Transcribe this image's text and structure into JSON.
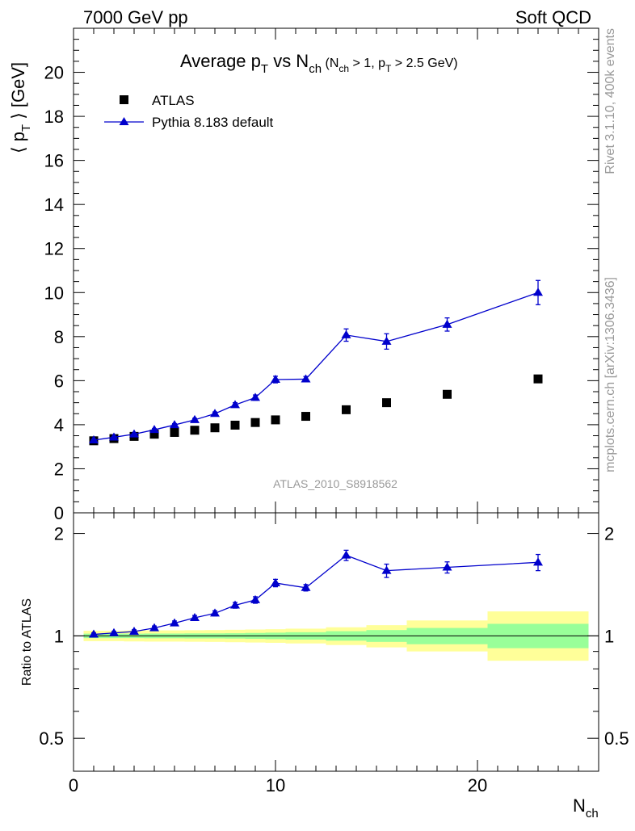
{
  "header": {
    "left": "7000 GeV pp",
    "right": "Soft QCD"
  },
  "side_labels": {
    "rivet": "Rivet 3.1.10,  400k events",
    "mcplots": "mcplots.cern.ch [arXiv:1306.3436]"
  },
  "chart_data": [
    {
      "type": "scatter",
      "panel": "main",
      "title_parts": {
        "t1": "Average p",
        "t1_sub": "T",
        "t2": " vs N",
        "t2_sub": "ch",
        "t3": " (N",
        "t3_sub": "ch",
        "t4": " > 1, p",
        "t4_sub": "T",
        "t5": " > 2.5 GeV)"
      },
      "ylabel_parts": {
        "open": "⟨ p",
        "sub": "T",
        "close": " ⟩  [GeV]"
      },
      "xlabel_parts": {
        "main": "N",
        "sub": "ch"
      },
      "xlim": [
        0,
        26
      ],
      "ylim": [
        0,
        22
      ],
      "xticks": [
        0,
        10,
        20
      ],
      "yticks": [
        0,
        2,
        4,
        6,
        8,
        10,
        12,
        14,
        16,
        18,
        20
      ],
      "legend_position": "top-left",
      "reference_label": "ATLAS_2010_S8918562",
      "series": [
        {
          "name": "ATLAS",
          "style": "square-marker",
          "color": "#000000",
          "x": [
            1,
            2,
            3,
            4,
            5,
            6,
            7,
            8,
            9,
            10,
            11.5,
            13.5,
            15.5,
            18.5,
            23
          ],
          "y": [
            3.27,
            3.37,
            3.47,
            3.57,
            3.65,
            3.75,
            3.86,
            3.98,
            4.1,
            4.22,
            4.38,
            4.68,
            5.0,
            5.38,
            6.08
          ],
          "yerr": [
            0,
            0,
            0,
            0,
            0,
            0,
            0,
            0,
            0,
            0,
            0,
            0,
            0,
            0,
            0
          ]
        },
        {
          "name": "Pythia 8.183 default",
          "style": "triangle-line",
          "color": "#0000cc",
          "x": [
            1,
            2,
            3,
            4,
            5,
            6,
            7,
            8,
            9,
            10,
            11.5,
            13.5,
            15.5,
            18.5,
            23
          ],
          "y": [
            3.3,
            3.43,
            3.57,
            3.77,
            3.99,
            4.22,
            4.5,
            4.9,
            5.23,
            6.05,
            6.07,
            8.07,
            7.78,
            8.55,
            10.0
          ],
          "yerr": [
            0.03,
            0.04,
            0.04,
            0.05,
            0.06,
            0.07,
            0.08,
            0.1,
            0.12,
            0.15,
            0.12,
            0.28,
            0.35,
            0.3,
            0.55
          ]
        }
      ]
    },
    {
      "type": "scatter",
      "panel": "ratio",
      "ylabel": "Ratio to ATLAS",
      "xlim": [
        0,
        26
      ],
      "ylim": [
        0.4,
        2.3
      ],
      "ylog": true,
      "yticks": [
        0.5,
        1,
        2
      ],
      "ytick_labels": [
        "0.5",
        "1",
        "2"
      ],
      "reference_line": 1,
      "bands": [
        {
          "x0": 0.5,
          "x1": 1.5,
          "inner": [
            0.985,
            1.015
          ],
          "outer": [
            0.965,
            1.035
          ]
        },
        {
          "x0": 1.5,
          "x1": 2.5,
          "inner": [
            0.985,
            1.015
          ],
          "outer": [
            0.965,
            1.035
          ]
        },
        {
          "x0": 2.5,
          "x1": 3.5,
          "inner": [
            0.985,
            1.015
          ],
          "outer": [
            0.963,
            1.037
          ]
        },
        {
          "x0": 3.5,
          "x1": 4.5,
          "inner": [
            0.984,
            1.016
          ],
          "outer": [
            0.962,
            1.038
          ]
        },
        {
          "x0": 4.5,
          "x1": 5.5,
          "inner": [
            0.984,
            1.016
          ],
          "outer": [
            0.962,
            1.038
          ]
        },
        {
          "x0": 5.5,
          "x1": 6.5,
          "inner": [
            0.983,
            1.017
          ],
          "outer": [
            0.961,
            1.039
          ]
        },
        {
          "x0": 6.5,
          "x1": 7.5,
          "inner": [
            0.983,
            1.017
          ],
          "outer": [
            0.96,
            1.04
          ]
        },
        {
          "x0": 7.5,
          "x1": 8.5,
          "inner": [
            0.982,
            1.018
          ],
          "outer": [
            0.958,
            1.042
          ]
        },
        {
          "x0": 8.5,
          "x1": 9.5,
          "inner": [
            0.98,
            1.02
          ],
          "outer": [
            0.956,
            1.044
          ]
        },
        {
          "x0": 9.5,
          "x1": 10.5,
          "inner": [
            0.978,
            1.022
          ],
          "outer": [
            0.954,
            1.046
          ]
        },
        {
          "x0": 10.5,
          "x1": 12.5,
          "inner": [
            0.975,
            1.025
          ],
          "outer": [
            0.95,
            1.05
          ]
        },
        {
          "x0": 12.5,
          "x1": 14.5,
          "inner": [
            0.968,
            1.032
          ],
          "outer": [
            0.94,
            1.06
          ]
        },
        {
          "x0": 14.5,
          "x1": 16.5,
          "inner": [
            0.96,
            1.04
          ],
          "outer": [
            0.925,
            1.075
          ]
        },
        {
          "x0": 16.5,
          "x1": 20.5,
          "inner": [
            0.945,
            1.055
          ],
          "outer": [
            0.9,
            1.11
          ]
        },
        {
          "x0": 20.5,
          "x1": 25.5,
          "inner": [
            0.92,
            1.085
          ],
          "outer": [
            0.845,
            1.18
          ]
        }
      ],
      "series": [
        {
          "name": "Pythia 8.183 default / ATLAS",
          "style": "triangle-line",
          "color": "#0000cc",
          "x": [
            1,
            2,
            3,
            4,
            5,
            6,
            7,
            8,
            9,
            10,
            11.5,
            13.5,
            15.5,
            18.5,
            23
          ],
          "y": [
            1.01,
            1.02,
            1.03,
            1.055,
            1.09,
            1.13,
            1.165,
            1.23,
            1.275,
            1.43,
            1.385,
            1.725,
            1.555,
            1.59,
            1.645
          ],
          "yerr": [
            0.01,
            0.01,
            0.012,
            0.014,
            0.016,
            0.018,
            0.02,
            0.024,
            0.028,
            0.036,
            0.03,
            0.06,
            0.07,
            0.06,
            0.09
          ]
        }
      ]
    }
  ],
  "colors": {
    "data": "#000000",
    "mc": "#0000cc",
    "band_inner": "#99ff99",
    "band_outer": "#ffff99",
    "side_text": "#999999"
  }
}
